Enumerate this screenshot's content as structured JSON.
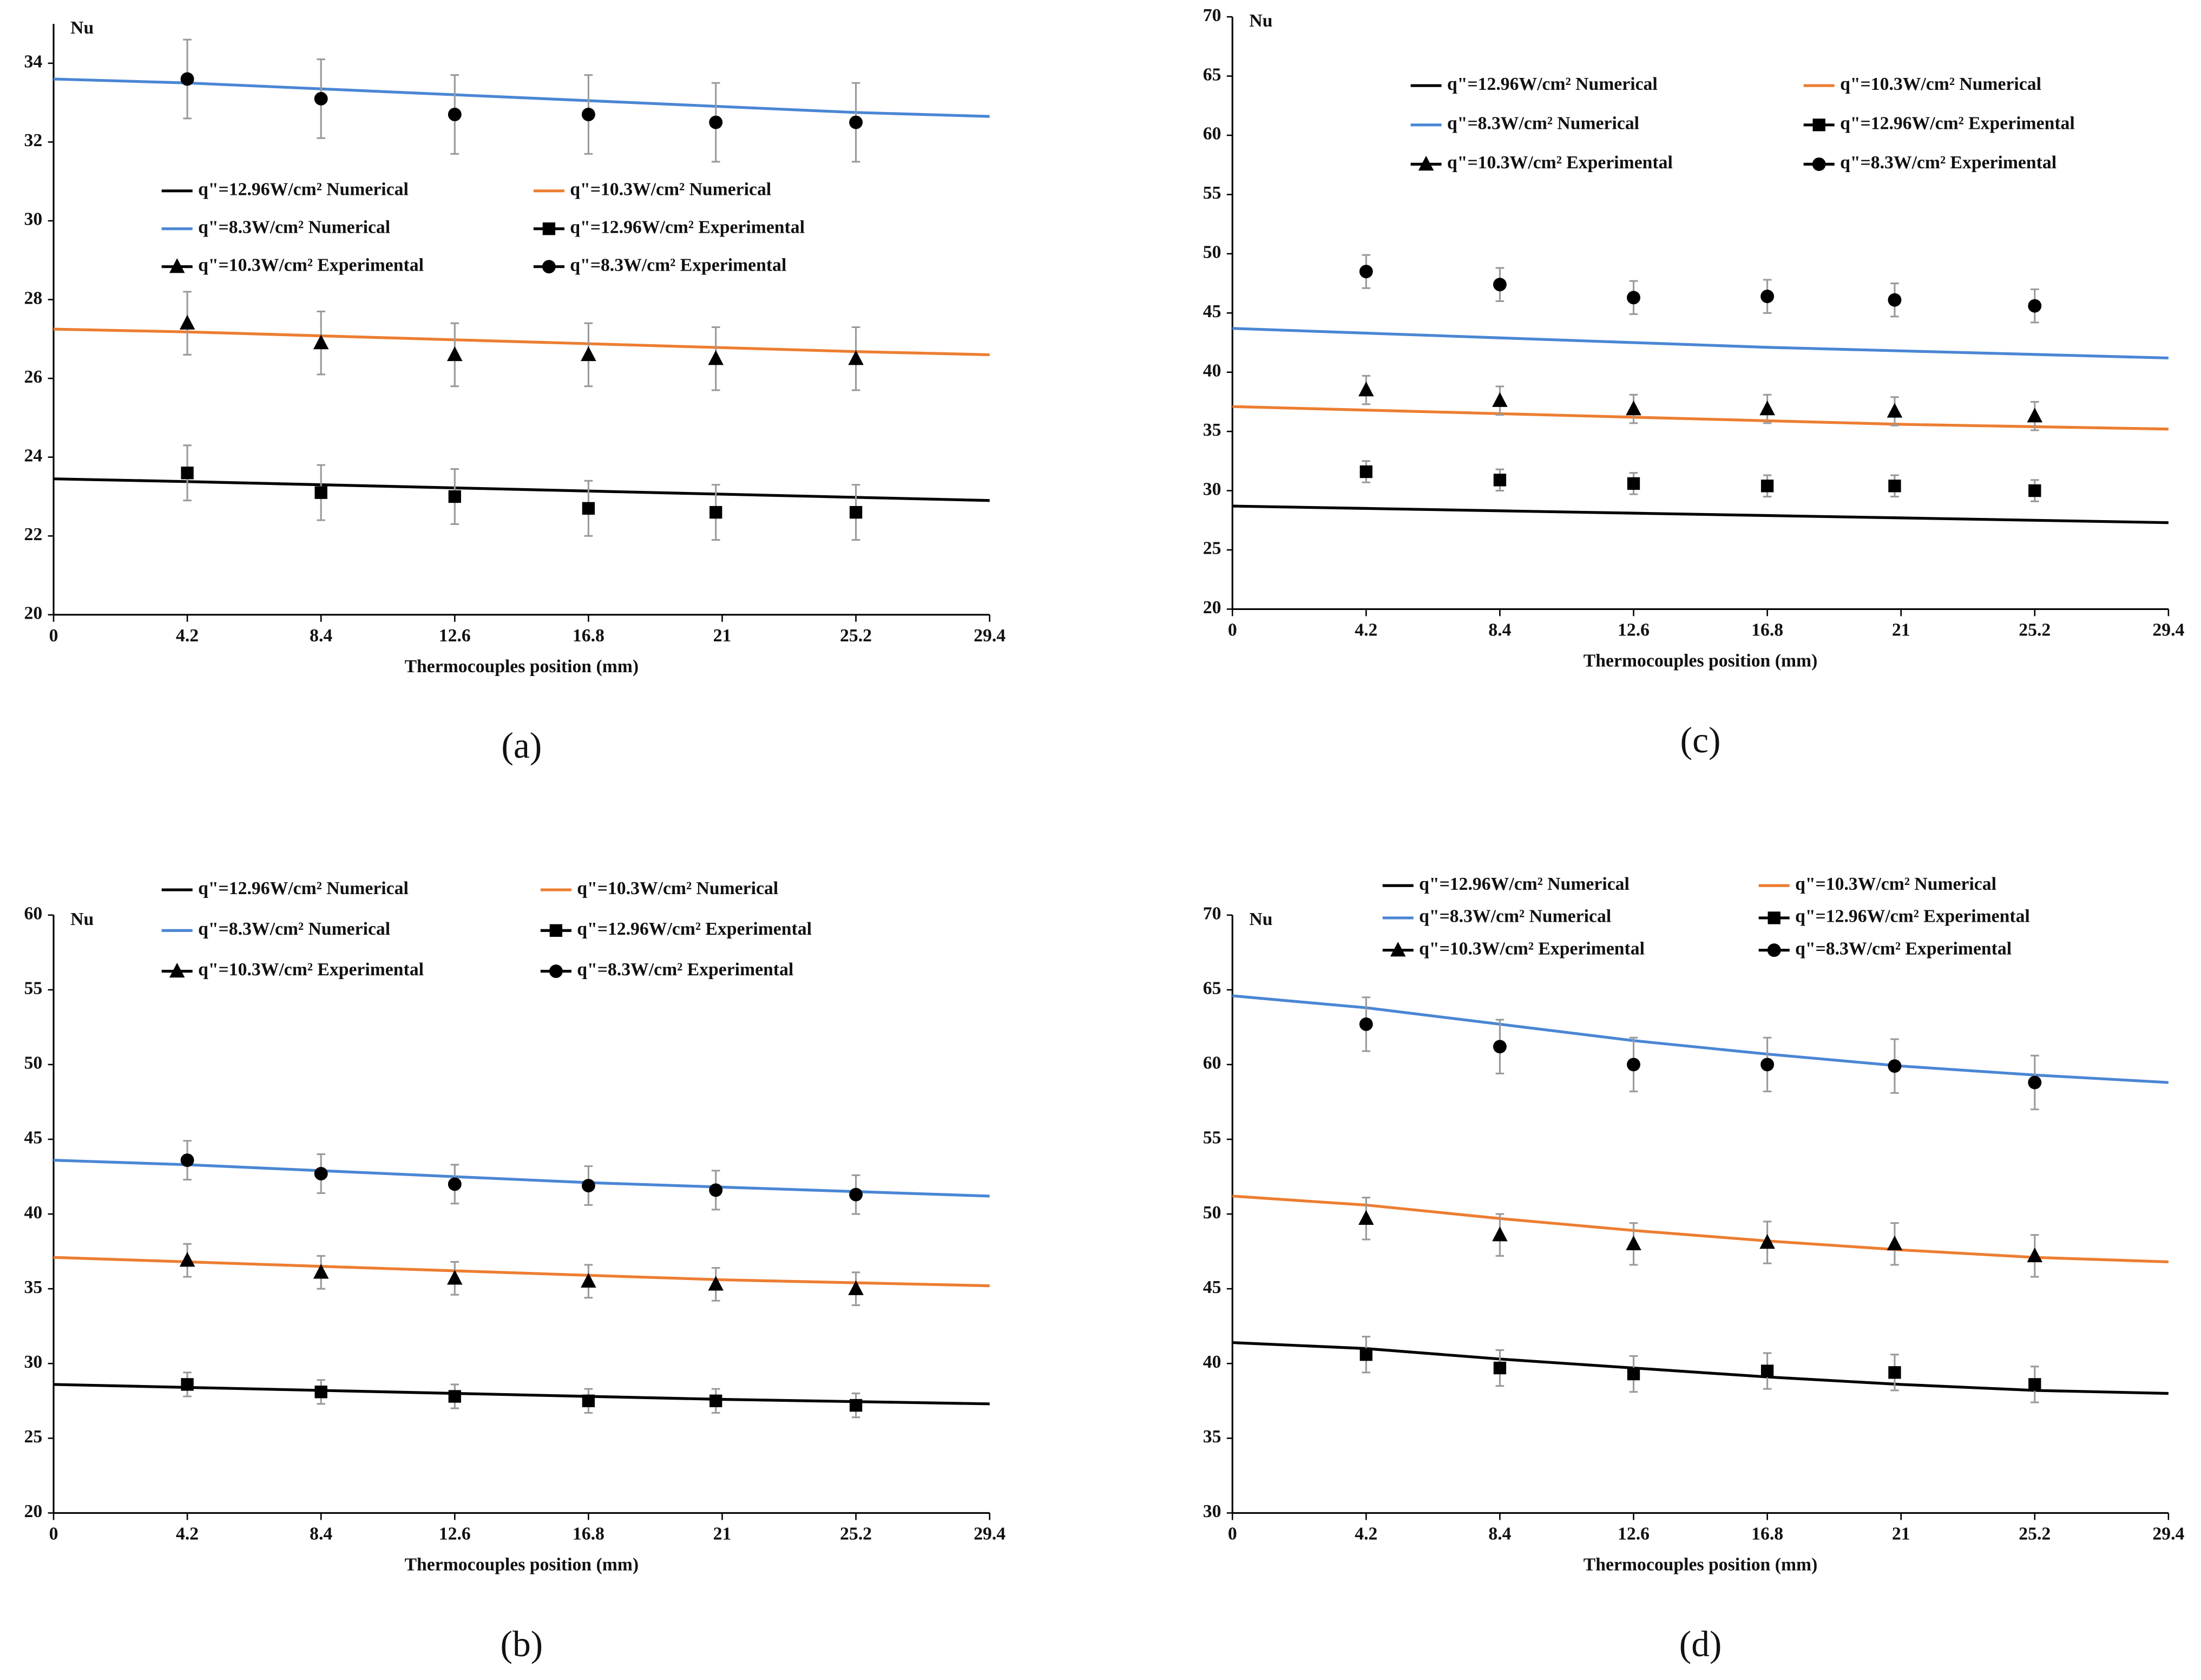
{
  "chart_data": [
    {
      "type": "line",
      "label": "(a)",
      "ylabel": "Nu",
      "xlabel": "Thermocouples position (mm)",
      "xlim": [
        0,
        29.4
      ],
      "xticks": [
        0,
        4.2,
        8.4,
        12.6,
        16.8,
        21,
        25.2,
        29.4
      ],
      "ylim": [
        20,
        35
      ],
      "yticks": [
        20,
        22,
        24,
        26,
        28,
        30,
        32,
        34
      ],
      "series": [
        {
          "name": "q\"=12.96W/cm² Numerical",
          "color": "#000000",
          "marker": "none",
          "x": [
            0,
            4.2,
            8.4,
            12.6,
            16.8,
            21,
            25.2,
            29.4
          ],
          "values": [
            23.45,
            23.38,
            23.3,
            23.22,
            23.14,
            23.06,
            22.98,
            22.9
          ]
        },
        {
          "name": "q\"=10.3W/cm² Numerical",
          "color": "#ed7d31",
          "marker": "none",
          "x": [
            0,
            4.2,
            8.4,
            12.6,
            16.8,
            21,
            25.2,
            29.4
          ],
          "values": [
            27.25,
            27.18,
            27.08,
            26.98,
            26.88,
            26.78,
            26.68,
            26.6
          ]
        },
        {
          "name": "q\"=8.3W/cm² Numerical",
          "color": "#4a86d4",
          "marker": "none",
          "x": [
            0,
            4.2,
            8.4,
            12.6,
            16.8,
            21,
            25.2,
            29.4
          ],
          "values": [
            33.6,
            33.5,
            33.35,
            33.2,
            33.05,
            32.9,
            32.75,
            32.65
          ]
        },
        {
          "name": "q\"=12.96W/cm² Experimental",
          "color": "#000000",
          "marker": "square",
          "x": [
            4.2,
            8.4,
            12.6,
            16.8,
            20.8,
            25.2
          ],
          "values": [
            23.6,
            23.1,
            23.0,
            22.7,
            22.6,
            22.6
          ],
          "errors": [
            0.7,
            0.7,
            0.7,
            0.7,
            0.7,
            0.7
          ]
        },
        {
          "name": "q\"=10.3W/cm² Experimental",
          "color": "#000000",
          "marker": "triangle",
          "x": [
            4.2,
            8.4,
            12.6,
            16.8,
            20.8,
            25.2
          ],
          "values": [
            27.4,
            26.9,
            26.6,
            26.6,
            26.5,
            26.5
          ],
          "errors": [
            0.8,
            0.8,
            0.8,
            0.8,
            0.8,
            0.8
          ]
        },
        {
          "name": "q\"=8.3W/cm² Experimental",
          "color": "#000000",
          "marker": "circle",
          "x": [
            4.2,
            8.4,
            12.6,
            16.8,
            20.8,
            25.2
          ],
          "values": [
            33.6,
            33.1,
            32.7,
            32.7,
            32.5,
            32.5
          ],
          "errors": [
            1.0,
            1.0,
            1.0,
            1.0,
            1.0,
            1.0
          ]
        }
      ]
    },
    {
      "type": "line",
      "label": "(b)",
      "ylabel": "Nu",
      "xlabel": "Thermocouples position (mm)",
      "xlim": [
        0,
        29.4
      ],
      "xticks": [
        0,
        4.2,
        8.4,
        12.6,
        16.8,
        21,
        25.2,
        29.4
      ],
      "ylim": [
        20,
        60
      ],
      "yticks": [
        20,
        25,
        30,
        35,
        40,
        45,
        50,
        55,
        60
      ],
      "series": [
        {
          "name": "q\"=12.96W/cm² Numerical",
          "color": "#000000",
          "marker": "none",
          "x": [
            0,
            4.2,
            8.4,
            12.6,
            16.8,
            21,
            25.2,
            29.4
          ],
          "values": [
            28.6,
            28.4,
            28.2,
            28.0,
            27.8,
            27.6,
            27.45,
            27.3
          ]
        },
        {
          "name": "q\"=10.3W/cm² Numerical",
          "color": "#ed7d31",
          "marker": "none",
          "x": [
            0,
            4.2,
            8.4,
            12.6,
            16.8,
            21,
            25.2,
            29.4
          ],
          "values": [
            37.1,
            36.8,
            36.5,
            36.2,
            35.9,
            35.6,
            35.4,
            35.2
          ]
        },
        {
          "name": "q\"=8.3W/cm² Numerical",
          "color": "#4a86d4",
          "marker": "none",
          "x": [
            0,
            4.2,
            8.4,
            12.6,
            16.8,
            21,
            25.2,
            29.4
          ],
          "values": [
            43.6,
            43.3,
            42.9,
            42.5,
            42.1,
            41.8,
            41.5,
            41.2
          ]
        },
        {
          "name": "q\"=12.96W/cm² Experimental",
          "color": "#000000",
          "marker": "square",
          "x": [
            4.2,
            8.4,
            12.6,
            16.8,
            20.8,
            25.2
          ],
          "values": [
            28.6,
            28.1,
            27.8,
            27.5,
            27.5,
            27.2
          ],
          "errors": [
            0.8,
            0.8,
            0.8,
            0.8,
            0.8,
            0.8
          ]
        },
        {
          "name": "q\"=10.3W/cm² Experimental",
          "color": "#000000",
          "marker": "triangle",
          "x": [
            4.2,
            8.4,
            12.6,
            16.8,
            20.8,
            25.2
          ],
          "values": [
            36.9,
            36.1,
            35.7,
            35.5,
            35.3,
            35.0
          ],
          "errors": [
            1.1,
            1.1,
            1.1,
            1.1,
            1.1,
            1.1
          ]
        },
        {
          "name": "q\"=8.3W/cm² Experimental",
          "color": "#000000",
          "marker": "circle",
          "x": [
            4.2,
            8.4,
            12.6,
            16.8,
            20.8,
            25.2
          ],
          "values": [
            43.6,
            42.7,
            42.0,
            41.9,
            41.6,
            41.3
          ],
          "errors": [
            1.3,
            1.3,
            1.3,
            1.3,
            1.3,
            1.3
          ]
        }
      ]
    },
    {
      "type": "line",
      "label": "(c)",
      "ylabel": "Nu",
      "xlabel": "Thermocouples position (mm)",
      "xlim": [
        0,
        29.4
      ],
      "xticks": [
        0,
        4.2,
        8.4,
        12.6,
        16.8,
        21,
        25.2,
        29.4
      ],
      "ylim": [
        20,
        70
      ],
      "yticks": [
        20,
        25,
        30,
        35,
        40,
        45,
        50,
        55,
        60,
        65,
        70
      ],
      "series": [
        {
          "name": "q\"=12.96W/cm² Numerical",
          "color": "#000000",
          "marker": "none",
          "x": [
            0,
            4.2,
            8.4,
            12.6,
            16.8,
            21,
            25.2,
            29.4
          ],
          "values": [
            28.7,
            28.5,
            28.3,
            28.1,
            27.9,
            27.7,
            27.5,
            27.3
          ]
        },
        {
          "name": "q\"=10.3W/cm² Numerical",
          "color": "#ed7d31",
          "marker": "none",
          "x": [
            0,
            4.2,
            8.4,
            12.6,
            16.8,
            21,
            25.2,
            29.4
          ],
          "values": [
            37.1,
            36.8,
            36.5,
            36.2,
            35.9,
            35.6,
            35.4,
            35.2
          ]
        },
        {
          "name": "q\"=8.3W/cm² Numerical",
          "color": "#4a86d4",
          "marker": "none",
          "x": [
            0,
            4.2,
            8.4,
            12.6,
            16.8,
            21,
            25.2,
            29.4
          ],
          "values": [
            43.7,
            43.3,
            42.9,
            42.5,
            42.1,
            41.8,
            41.5,
            41.2
          ]
        },
        {
          "name": "q\"=12.96W/cm² Experimental",
          "color": "#000000",
          "marker": "square",
          "x": [
            4.2,
            8.4,
            12.6,
            16.8,
            20.8,
            25.2
          ],
          "values": [
            31.6,
            30.9,
            30.6,
            30.4,
            30.4,
            30.0
          ],
          "errors": [
            0.9,
            0.9,
            0.9,
            0.9,
            0.9,
            0.9
          ]
        },
        {
          "name": "q\"=10.3W/cm² Experimental",
          "color": "#000000",
          "marker": "triangle",
          "x": [
            4.2,
            8.4,
            12.6,
            16.8,
            20.8,
            25.2
          ],
          "values": [
            38.5,
            37.6,
            36.9,
            36.9,
            36.7,
            36.3
          ],
          "errors": [
            1.2,
            1.2,
            1.2,
            1.2,
            1.2,
            1.2
          ]
        },
        {
          "name": "q\"=8.3W/cm² Experimental",
          "color": "#000000",
          "marker": "circle",
          "x": [
            4.2,
            8.4,
            12.6,
            16.8,
            20.8,
            25.2
          ],
          "values": [
            48.5,
            47.4,
            46.3,
            46.4,
            46.1,
            45.6
          ],
          "errors": [
            1.4,
            1.4,
            1.4,
            1.4,
            1.4,
            1.4
          ]
        }
      ]
    },
    {
      "type": "line",
      "label": "(d)",
      "ylabel": "Nu",
      "xlabel": "Thermocouples position (mm)",
      "xlim": [
        0,
        29.4
      ],
      "xticks": [
        0,
        4.2,
        8.4,
        12.6,
        16.8,
        21,
        25.2,
        29.4
      ],
      "ylim": [
        30,
        70
      ],
      "yticks": [
        30,
        35,
        40,
        45,
        50,
        55,
        60,
        65,
        70
      ],
      "series": [
        {
          "name": "q\"=12.96W/cm² Numerical",
          "color": "#000000",
          "marker": "none",
          "x": [
            0,
            4.2,
            8.4,
            12.6,
            16.8,
            21,
            25.2,
            29.4
          ],
          "values": [
            41.4,
            41.0,
            40.3,
            39.7,
            39.1,
            38.6,
            38.2,
            38.0
          ]
        },
        {
          "name": "q\"=10.3W/cm² Numerical",
          "color": "#ed7d31",
          "marker": "none",
          "x": [
            0,
            4.2,
            8.4,
            12.6,
            16.8,
            21,
            25.2,
            29.4
          ],
          "values": [
            51.2,
            50.6,
            49.7,
            48.9,
            48.2,
            47.6,
            47.1,
            46.8
          ]
        },
        {
          "name": "q\"=8.3W/cm² Numerical",
          "color": "#4a86d4",
          "marker": "none",
          "x": [
            0,
            4.2,
            8.4,
            12.6,
            16.8,
            21,
            25.2,
            29.4
          ],
          "values": [
            64.6,
            63.8,
            62.7,
            61.6,
            60.7,
            59.9,
            59.3,
            58.8
          ]
        },
        {
          "name": "q\"=12.96W/cm² Experimental",
          "color": "#000000",
          "marker": "square",
          "x": [
            4.2,
            8.4,
            12.6,
            16.8,
            20.8,
            25.2
          ],
          "values": [
            40.6,
            39.7,
            39.3,
            39.5,
            39.4,
            38.6
          ],
          "errors": [
            1.2,
            1.2,
            1.2,
            1.2,
            1.2,
            1.2
          ]
        },
        {
          "name": "q\"=10.3W/cm² Experimental",
          "color": "#000000",
          "marker": "triangle",
          "x": [
            4.2,
            8.4,
            12.6,
            16.8,
            20.8,
            25.2
          ],
          "values": [
            49.7,
            48.6,
            48.0,
            48.1,
            48.0,
            47.2
          ],
          "errors": [
            1.4,
            1.4,
            1.4,
            1.4,
            1.4,
            1.4
          ]
        },
        {
          "name": "q\"=8.3W/cm² Experimental",
          "color": "#000000",
          "marker": "circle",
          "x": [
            4.2,
            8.4,
            12.6,
            16.8,
            20.8,
            25.2
          ],
          "values": [
            62.7,
            61.2,
            60.0,
            60.0,
            59.9,
            58.8
          ],
          "errors": [
            1.8,
            1.8,
            1.8,
            1.8,
            1.8,
            1.8
          ]
        }
      ]
    }
  ]
}
